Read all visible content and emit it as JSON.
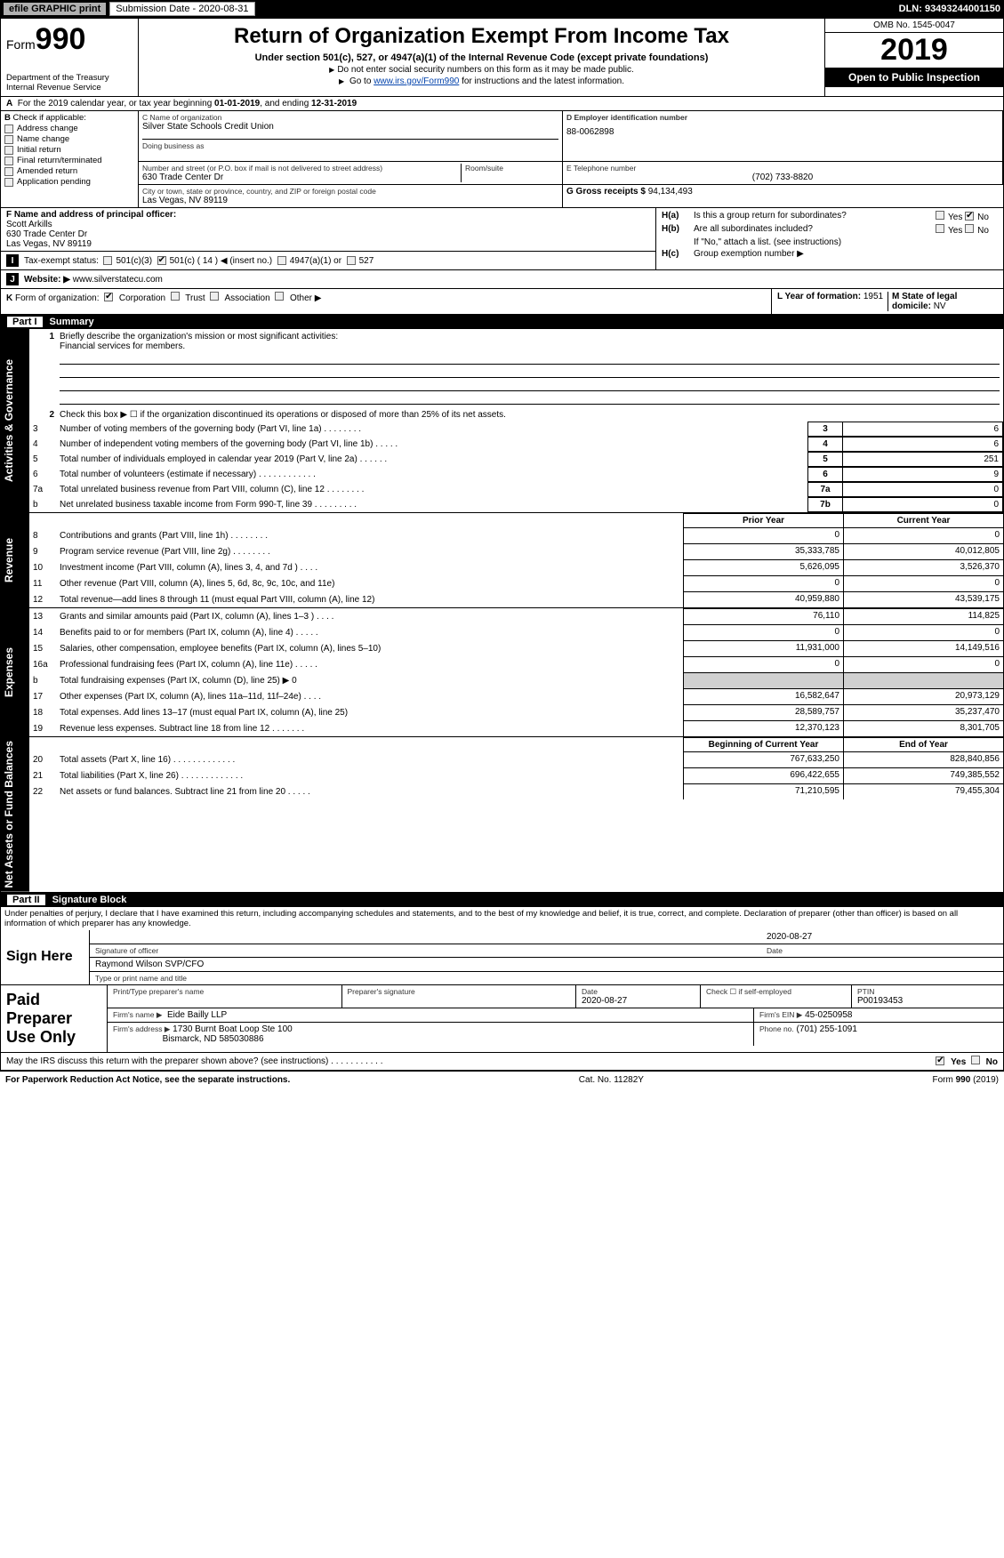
{
  "header": {
    "efile_label": "efile GRAPHIC print",
    "submission_label": "Submission Date - 2020-08-31",
    "dln": "DLN: 93493244001150"
  },
  "top": {
    "form_prefix": "Form",
    "form_number": "990",
    "dept1": "Department of the Treasury",
    "dept2": "Internal Revenue Service",
    "title": "Return of Organization Exempt From Income Tax",
    "sub1": "Under section 501(c), 527, or 4947(a)(1) of the Internal Revenue Code (except private foundations)",
    "sub2": "Do not enter social security numbers on this form as it may be made public.",
    "sub3_pre": "Go to ",
    "sub3_link": "www.irs.gov/Form990",
    "sub3_post": " for instructions and the latest information.",
    "omb": "OMB No. 1545-0047",
    "year": "2019",
    "open": "Open to Public Inspection"
  },
  "row_a": {
    "label_pre": "For the 2019 calendar year, or tax year beginning ",
    "begin": "01-01-2019",
    "mid": ", and ending ",
    "end": "12-31-2019"
  },
  "B": {
    "header": "Check if applicable:",
    "items": [
      "Address change",
      "Name change",
      "Initial return",
      "Final return/terminated",
      "Amended return",
      "Application pending"
    ]
  },
  "C": {
    "name_lbl": "C Name of organization",
    "name": "Silver State Schools Credit Union",
    "dba_lbl": "Doing business as",
    "addr_lbl": "Number and street (or P.O. box if mail is not delivered to street address)",
    "room_lbl": "Room/suite",
    "addr": "630 Trade Center Dr",
    "city_lbl": "City or town, state or province, country, and ZIP or foreign postal code",
    "city": "Las Vegas, NV  89119"
  },
  "D": {
    "lbl": "D Employer identification number",
    "val": "88-0062898"
  },
  "E": {
    "lbl": "E Telephone number",
    "val": "(702) 733-8820"
  },
  "G": {
    "lbl": "G Gross receipts $",
    "val": "94,134,493"
  },
  "F": {
    "lbl": "F Name and address of principal officer:",
    "name": "Scott Arkills",
    "addr": "630 Trade Center Dr",
    "city": "Las Vegas, NV  89119"
  },
  "H": {
    "a_lbl": "Is this a group return for subordinates?",
    "b_lbl": "Are all subordinates included?",
    "b_note": "If \"No,\" attach a list. (see instructions)",
    "c_lbl": "Group exemption number ▶",
    "ha": "H(a)",
    "hb": "H(b)",
    "hc": "H(c)",
    "yes": "Yes",
    "no": "No"
  },
  "I": {
    "lbl": "Tax-exempt status:",
    "opts": [
      "501(c)(3)",
      "501(c) ( 14 ) ◀ (insert no.)",
      "4947(a)(1) or",
      "527"
    ]
  },
  "J": {
    "lbl": "Website: ▶",
    "val": "www.silverstatecu.com"
  },
  "K": {
    "lbl": "Form of organization:",
    "opts": [
      "Corporation",
      "Trust",
      "Association",
      "Other ▶"
    ]
  },
  "L": {
    "lbl": "L Year of formation:",
    "val": "1951"
  },
  "M": {
    "lbl": "M State of legal domicile:",
    "val": "NV"
  },
  "parts": {
    "p1_roman": "Part I",
    "p1_title": "Summary",
    "p2_roman": "Part II",
    "p2_title": "Signature Block"
  },
  "tabs": {
    "gov": "Activities & Governance",
    "rev": "Revenue",
    "exp": "Expenses",
    "net": "Net Assets or Fund Balances"
  },
  "gov": {
    "l1": "Briefly describe the organization's mission or most significant activities:",
    "l1_val": "Financial services for members.",
    "l2": "Check this box ▶ ☐ if the organization discontinued its operations or disposed of more than 25% of its net assets.",
    "rows": [
      {
        "n": "3",
        "t": "Number of voting members of the governing body (Part VI, line 1a)   .     .     .     .     .     .     .     .",
        "box": "3",
        "v": "6"
      },
      {
        "n": "4",
        "t": "Number of independent voting members of the governing body (Part VI, line 1b)   .     .     .     .     .",
        "box": "4",
        "v": "6"
      },
      {
        "n": "5",
        "t": "Total number of individuals employed in calendar year 2019 (Part V, line 2a)   .     .     .     .     .     .",
        "box": "5",
        "v": "251"
      },
      {
        "n": "6",
        "t": "Total number of volunteers (estimate if necessary)   .     .     .     .     .     .     .     .     .     .     .     .",
        "box": "6",
        "v": "9"
      },
      {
        "n": "7a",
        "t": "Total unrelated business revenue from Part VIII, column (C), line 12   .     .     .     .     .     .     .     .",
        "box": "7a",
        "v": "0"
      },
      {
        "n": "b",
        "t": "Net unrelated business taxable income from Form 990-T, line 39   .     .     .     .     .     .     .     .     .",
        "box": "7b",
        "v": "0"
      }
    ]
  },
  "cols": {
    "prior": "Prior Year",
    "current": "Current Year",
    "boc": "Beginning of Current Year",
    "eoy": "End of Year"
  },
  "rev": [
    {
      "n": "8",
      "t": "Contributions and grants (Part VIII, line 1h)   .     .     .     .     .     .     .     .",
      "p": "0",
      "c": "0"
    },
    {
      "n": "9",
      "t": "Program service revenue (Part VIII, line 2g)   .     .     .     .     .     .     .     .",
      "p": "35,333,785",
      "c": "40,012,805"
    },
    {
      "n": "10",
      "t": "Investment income (Part VIII, column (A), lines 3, 4, and 7d )   .     .     .     .",
      "p": "5,626,095",
      "c": "3,526,370"
    },
    {
      "n": "11",
      "t": "Other revenue (Part VIII, column (A), lines 5, 6d, 8c, 9c, 10c, and 11e)",
      "p": "0",
      "c": "0"
    },
    {
      "n": "12",
      "t": "Total revenue—add lines 8 through 11 (must equal Part VIII, column (A), line 12)",
      "p": "40,959,880",
      "c": "43,539,175"
    }
  ],
  "exp": [
    {
      "n": "13",
      "t": "Grants and similar amounts paid (Part IX, column (A), lines 1–3 )   .     .     .     .",
      "p": "76,110",
      "c": "114,825"
    },
    {
      "n": "14",
      "t": "Benefits paid to or for members (Part IX, column (A), line 4)   .     .     .     .     .",
      "p": "0",
      "c": "0"
    },
    {
      "n": "15",
      "t": "Salaries, other compensation, employee benefits (Part IX, column (A), lines 5–10)",
      "p": "11,931,000",
      "c": "14,149,516"
    },
    {
      "n": "16a",
      "t": "Professional fundraising fees (Part IX, column (A), line 11e)   .     .     .     .     .",
      "p": "0",
      "c": "0"
    },
    {
      "n": "b",
      "t": "Total fundraising expenses (Part IX, column (D), line 25) ▶ 0",
      "p": "",
      "c": "",
      "shaded": true
    },
    {
      "n": "17",
      "t": "Other expenses (Part IX, column (A), lines 11a–11d, 11f–24e)   .     .     .     .",
      "p": "16,582,647",
      "c": "20,973,129"
    },
    {
      "n": "18",
      "t": "Total expenses. Add lines 13–17 (must equal Part IX, column (A), line 25)",
      "p": "28,589,757",
      "c": "35,237,470"
    },
    {
      "n": "19",
      "t": "Revenue less expenses. Subtract line 18 from line 12   .     .     .     .     .     .     .",
      "p": "12,370,123",
      "c": "8,301,705"
    }
  ],
  "net": [
    {
      "n": "20",
      "t": "Total assets (Part X, line 16)   .     .     .     .     .     .     .     .     .     .     .     .     .",
      "p": "767,633,250",
      "c": "828,840,856"
    },
    {
      "n": "21",
      "t": "Total liabilities (Part X, line 26)   .     .     .     .     .     .     .     .     .     .     .     .     .",
      "p": "696,422,655",
      "c": "749,385,552"
    },
    {
      "n": "22",
      "t": "Net assets or fund balances. Subtract line 21 from line 20   .     .     .     .     .",
      "p": "71,210,595",
      "c": "79,455,304"
    }
  ],
  "perjury": "Under penalties of perjury, I declare that I have examined this return, including accompanying schedules and statements, and to the best of my knowledge and belief, it is true, correct, and complete. Declaration of preparer (other than officer) is based on all information of which preparer has any knowledge.",
  "sign": {
    "here": "Sign Here",
    "sig_lbl": "Signature of officer",
    "date_lbl": "Date",
    "date": "2020-08-27",
    "name": "Raymond Wilson SVP/CFO",
    "name_lbl": "Type or print name and title"
  },
  "prep": {
    "title": "Paid Preparer Use Only",
    "r1": {
      "c1": "Print/Type preparer's name",
      "c2": "Preparer's signature",
      "c3_lbl": "Date",
      "c3": "2020-08-27",
      "c4_lbl": "Check ☐ if self-employed",
      "c5_lbl": "PTIN",
      "c5": "P00193453"
    },
    "r2": {
      "firm_lbl": "Firm's name   ▶",
      "firm": "Eide Bailly LLP",
      "ein_lbl": "Firm's EIN ▶",
      "ein": "45-0250958"
    },
    "r3": {
      "addr_lbl": "Firm's address ▶",
      "addr1": "1730 Burnt Boat Loop Ste 100",
      "addr2": "Bismarck, ND  585030886",
      "ph_lbl": "Phone no.",
      "ph": "(701) 255-1091"
    }
  },
  "discuss": {
    "q": "May the IRS discuss this return with the preparer shown above? (see instructions)   .     .     .     .     .     .     .     .     .     .     .",
    "yes": "Yes",
    "no": "No"
  },
  "footer": {
    "left": "For Paperwork Reduction Act Notice, see the separate instructions.",
    "mid": "Cat. No. 11282Y",
    "right": "Form 990 (2019)"
  }
}
